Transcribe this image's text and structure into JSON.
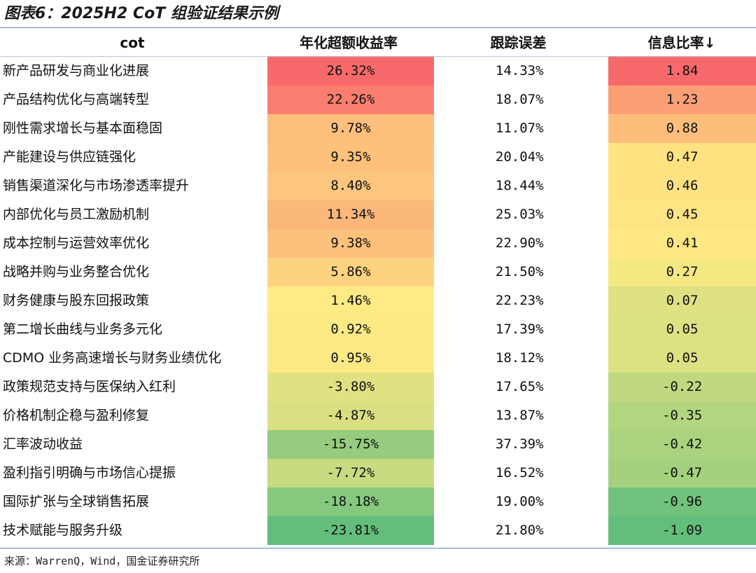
{
  "title": "图表6：2025H2 CoT 组验证结果示例",
  "source": "来源：WarrenQ，Wind，国金证券研究所",
  "colors": {
    "rule": "#5b8ac5",
    "scale_low": "#63be7b",
    "scale_mid": "#ffeb84",
    "scale_high": "#f8696b"
  },
  "chart_data": {
    "type": "table",
    "columns": [
      "cot",
      "年化超额收益率",
      "跟踪误差",
      "信息比率↓"
    ],
    "sort": {
      "column": "信息比率",
      "order": "descending"
    },
    "rows": [
      {
        "cot": "新产品研发与商业化进展",
        "excess": "26.32%",
        "excess_value": 26.32,
        "te": "14.33%",
        "ir": "1.84",
        "ir_value": 1.84
      },
      {
        "cot": "产品结构优化与高端转型",
        "excess": "22.26%",
        "excess_value": 22.26,
        "te": "18.07%",
        "ir": "1.23",
        "ir_value": 1.23
      },
      {
        "cot": "刚性需求增长与基本面稳固",
        "excess": "9.78%",
        "excess_value": 9.78,
        "te": "11.07%",
        "ir": "0.88",
        "ir_value": 0.88
      },
      {
        "cot": "产能建设与供应链强化",
        "excess": "9.35%",
        "excess_value": 9.35,
        "te": "20.04%",
        "ir": "0.47",
        "ir_value": 0.47
      },
      {
        "cot": "销售渠道深化与市场渗透率提升",
        "excess": "8.40%",
        "excess_value": 8.4,
        "te": "18.44%",
        "ir": "0.46",
        "ir_value": 0.46
      },
      {
        "cot": "内部优化与员工激励机制",
        "excess": "11.34%",
        "excess_value": 11.34,
        "te": "25.03%",
        "ir": "0.45",
        "ir_value": 0.45
      },
      {
        "cot": "成本控制与运营效率优化",
        "excess": "9.38%",
        "excess_value": 9.38,
        "te": "22.90%",
        "ir": "0.41",
        "ir_value": 0.41
      },
      {
        "cot": "战略并购与业务整合优化",
        "excess": "5.86%",
        "excess_value": 5.86,
        "te": "21.50%",
        "ir": "0.27",
        "ir_value": 0.27
      },
      {
        "cot": "财务健康与股东回报政策",
        "excess": "1.46%",
        "excess_value": 1.46,
        "te": "22.23%",
        "ir": "0.07",
        "ir_value": 0.07
      },
      {
        "cot": "第二增长曲线与业务多元化",
        "excess": "0.92%",
        "excess_value": 0.92,
        "te": "17.39%",
        "ir": "0.05",
        "ir_value": 0.05
      },
      {
        "cot": "CDMO 业务高速增长与财务业绩优化",
        "excess": "0.95%",
        "excess_value": 0.95,
        "te": "18.12%",
        "ir": "0.05",
        "ir_value": 0.05
      },
      {
        "cot": "政策规范支持与医保纳入红利",
        "excess": "-3.80%",
        "excess_value": -3.8,
        "te": "17.65%",
        "ir": "-0.22",
        "ir_value": -0.22
      },
      {
        "cot": "价格机制企稳与盈利修复",
        "excess": "-4.87%",
        "excess_value": -4.87,
        "te": "13.87%",
        "ir": "-0.35",
        "ir_value": -0.35
      },
      {
        "cot": "汇率波动收益",
        "excess": "-15.75%",
        "excess_value": -15.75,
        "te": "37.39%",
        "ir": "-0.42",
        "ir_value": -0.42
      },
      {
        "cot": "盈利指引明确与市场信心提振",
        "excess": "-7.72%",
        "excess_value": -7.72,
        "te": "16.52%",
        "ir": "-0.47",
        "ir_value": -0.47
      },
      {
        "cot": "国际扩张与全球销售拓展",
        "excess": "-18.18%",
        "excess_value": -18.18,
        "te": "19.00%",
        "ir": "-0.96",
        "ir_value": -0.96
      },
      {
        "cot": "技术赋能与服务升级",
        "excess": "-23.81%",
        "excess_value": -23.81,
        "te": "21.80%",
        "ir": "-1.09",
        "ir_value": -1.09
      }
    ]
  }
}
